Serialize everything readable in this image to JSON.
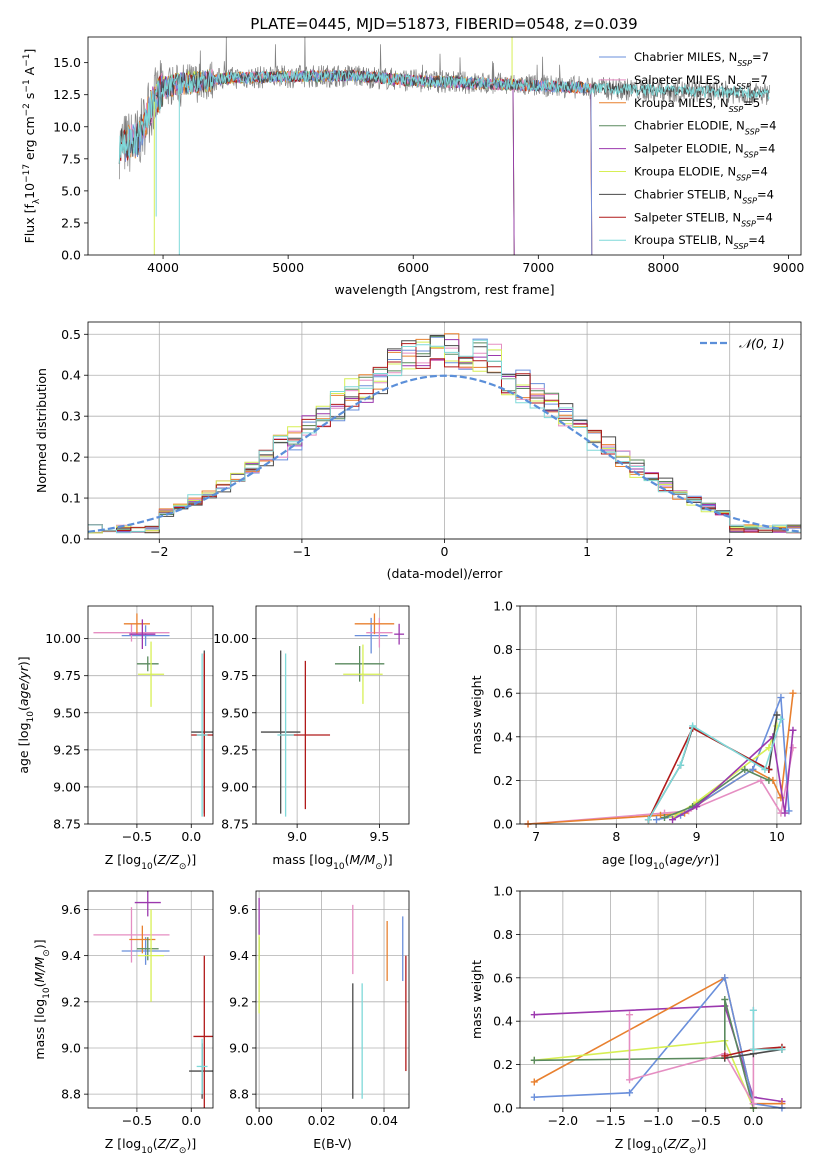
{
  "colors": {
    "Chabrier MILES": "#6a8fdb",
    "Salpeter MILES": "#e58ec2",
    "Kroupa MILES": "#e8802f",
    "Chabrier ELODIE": "#5a8a5e",
    "Salpeter ELODIE": "#9b38ae",
    "Kroupa ELODIE": "#d7ef55",
    "Chabrier STELIB": "#4a4a4a",
    "Salpeter STELIB": "#b01a1a",
    "Kroupa STELIB": "#7fd9d9",
    "gaussian": "#5b8fd9",
    "data_gray": "#808080"
  },
  "chart_data": [
    {
      "id": "spectrum",
      "type": "line",
      "title": "PLATE=0445, MJD=51873, FIBERID=0548, z=0.039",
      "xlabel": "wavelength [Angstrom, rest frame]",
      "ylabel": "Flux [f_λ 10^-17 erg cm^-2 s^-1 A^-1]",
      "xlim": [
        3400,
        9100
      ],
      "ylim": [
        0,
        17
      ],
      "xticks": [
        4000,
        5000,
        6000,
        7000,
        8000,
        9000
      ],
      "yticks": [
        0.0,
        2.5,
        5.0,
        7.5,
        10.0,
        12.5,
        15.0
      ],
      "grid": false,
      "legend_position": "upper right",
      "legend": [
        {
          "name": "Chabrier MILES",
          "n": "7"
        },
        {
          "name": "Salpeter MILES",
          "n": "7"
        },
        {
          "name": "Kroupa MILES",
          "n": "5"
        },
        {
          "name": "Chabrier ELODIE",
          "n": "4"
        },
        {
          "name": "Salpeter ELODIE",
          "n": "4"
        },
        {
          "name": "Kroupa ELODIE",
          "n": "4"
        },
        {
          "name": "Chabrier STELIB",
          "n": "4"
        },
        {
          "name": "Salpeter STELIB",
          "n": "4"
        },
        {
          "name": "Kroupa STELIB",
          "n": "4"
        }
      ],
      "continuum": [
        [
          3650,
          8.5
        ],
        [
          3800,
          9.0
        ],
        [
          3900,
          11.5
        ],
        [
          4000,
          13.0
        ],
        [
          4100,
          13.3
        ],
        [
          4300,
          13.5
        ],
        [
          4500,
          13.8
        ],
        [
          5000,
          13.9
        ],
        [
          5500,
          14.0
        ],
        [
          6000,
          13.6
        ],
        [
          6500,
          13.4
        ],
        [
          7000,
          13.2
        ],
        [
          7500,
          13.0
        ],
        [
          8000,
          12.8
        ],
        [
          8500,
          12.7
        ],
        [
          8800,
          12.6
        ]
      ],
      "model_ends": {
        "Kroupa ELODIE": [
          3900,
          6800
        ],
        "Chabrier ELODIE": [
          3900,
          6800
        ],
        "Salpeter ELODIE": [
          3900,
          6800
        ],
        "Kroupa MILES": [
          3700,
          7420
        ],
        "Salpeter MILES": [
          3700,
          7420
        ],
        "Chabrier MILES": [
          3700,
          7420
        ],
        "Salpeter STELIB": [
          3650,
          7420
        ],
        "Chabrier STELIB": [
          3650,
          8850
        ],
        "Kroupa STELIB": [
          3650,
          8850
        ]
      }
    },
    {
      "id": "residuals",
      "type": "area",
      "xlabel": "(data-model)/error",
      "ylabel": "Normed distribution",
      "xlim": [
        -2.5,
        2.5
      ],
      "ylim": [
        0,
        0.53
      ],
      "xticks": [
        -2,
        -1,
        0,
        1,
        2
      ],
      "yticks": [
        0.0,
        0.1,
        0.2,
        0.3,
        0.4,
        0.5
      ],
      "grid": true,
      "legend_position": "upper right",
      "legend": [
        {
          "name": "𝒩(0, 1)"
        }
      ],
      "bin_width": 0.1
    },
    {
      "id": "age_vs_Z",
      "type": "scatter",
      "xlabel": "Z [log10(Z/Z⊙)]",
      "ylabel": "age  [log10(age/yr)]",
      "xlim": [
        -0.95,
        0.2
      ],
      "ylim": [
        8.75,
        10.22
      ],
      "xticks": [
        -0.5,
        0.0
      ],
      "yticks": [
        8.75,
        9.0,
        9.25,
        9.5,
        9.75,
        10.0
      ],
      "grid": true,
      "points": [
        {
          "model": "Chabrier MILES",
          "x": -0.42,
          "xerr": 0.22,
          "y": 10.02,
          "yerr": 0.07
        },
        {
          "model": "Salpeter MILES",
          "x": -0.55,
          "xerr": 0.35,
          "y": 10.04,
          "yerr": 0.06
        },
        {
          "model": "Kroupa MILES",
          "x": -0.5,
          "xerr": 0.12,
          "y": 10.1,
          "yerr": 0.07
        },
        {
          "model": "Chabrier ELODIE",
          "x": -0.4,
          "xerr": 0.1,
          "y": 9.83,
          "yerr": 0.05
        },
        {
          "model": "Salpeter ELODIE",
          "x": -0.45,
          "xerr": 0.12,
          "y": 10.03,
          "yerr": 0.1
        },
        {
          "model": "Kroupa ELODIE",
          "x": -0.37,
          "xerr": 0.12,
          "y": 9.76,
          "yerr": 0.22
        },
        {
          "model": "Chabrier STELIB",
          "x": 0.12,
          "xerr": 0.12,
          "y": 9.37,
          "yerr": 0.55
        },
        {
          "model": "Salpeter STELIB",
          "x": 0.12,
          "xerr": 0.12,
          "y": 9.35,
          "yerr": 0.55
        },
        {
          "model": "Kroupa STELIB",
          "x": 0.1,
          "xerr": 0.05,
          "y": 9.35,
          "yerr": 0.55
        }
      ]
    },
    {
      "id": "age_vs_mass",
      "type": "scatter",
      "xlabel": "mass [log10(M/M⊙)]",
      "ylabel": "",
      "xlim": [
        8.75,
        9.68
      ],
      "ylim": [
        8.75,
        10.22
      ],
      "xticks": [
        9.0,
        9.5
      ],
      "yticks": [
        8.75,
        9.0,
        9.25,
        9.5,
        9.75,
        10.0
      ],
      "grid": true,
      "points": [
        {
          "model": "Chabrier MILES",
          "x": 9.45,
          "xerr": 0.1,
          "y": 10.02,
          "yerr": 0.12
        },
        {
          "model": "Salpeter MILES",
          "x": 9.5,
          "xerr": 0.08,
          "y": 10.04,
          "yerr": 0.1
        },
        {
          "model": "Kroupa MILES",
          "x": 9.47,
          "xerr": 0.12,
          "y": 10.1,
          "yerr": 0.07
        },
        {
          "model": "Chabrier ELODIE",
          "x": 9.38,
          "xerr": 0.15,
          "y": 9.83,
          "yerr": 0.12
        },
        {
          "model": "Salpeter ELODIE",
          "x": 9.62,
          "xerr": 0.03,
          "y": 10.03,
          "yerr": 0.07
        },
        {
          "model": "Kroupa ELODIE",
          "x": 9.4,
          "xerr": 0.12,
          "y": 9.76,
          "yerr": 0.2
        },
        {
          "model": "Chabrier STELIB",
          "x": 8.9,
          "xerr": 0.12,
          "y": 9.37,
          "yerr": 0.55
        },
        {
          "model": "Salpeter STELIB",
          "x": 9.05,
          "xerr": 0.15,
          "y": 9.35,
          "yerr": 0.5
        },
        {
          "model": "Kroupa STELIB",
          "x": 8.93,
          "xerr": 0.05,
          "y": 9.35,
          "yerr": 0.55
        }
      ]
    },
    {
      "id": "mass_weight_vs_age",
      "type": "line",
      "xlabel": "age  [log10(age/yr)]",
      "ylabel": "mass weight",
      "xlim": [
        6.8,
        10.3
      ],
      "ylim": [
        0,
        1
      ],
      "xticks": [
        7,
        8,
        9,
        10
      ],
      "yticks": [
        0.0,
        0.2,
        0.4,
        0.6,
        0.8,
        1.0
      ],
      "grid": true,
      "series": [
        {
          "model": "Salpeter MILES",
          "x": [
            6.9,
            8.6,
            8.9,
            9.8,
            10.05,
            10.2
          ],
          "y": [
            0.0,
            0.05,
            0.06,
            0.2,
            0.05,
            0.35
          ]
        },
        {
          "model": "Kroupa MILES",
          "x": [
            6.9,
            8.55,
            8.85,
            9.7,
            9.95,
            10.05,
            10.2
          ],
          "y": [
            0.0,
            0.04,
            0.05,
            0.25,
            0.2,
            0.12,
            0.6
          ]
        },
        {
          "model": "Chabrier MILES",
          "x": [
            8.5,
            8.8,
            9.7,
            10.05,
            10.15
          ],
          "y": [
            0.02,
            0.04,
            0.25,
            0.58,
            0.06
          ]
        },
        {
          "model": "Kroupa ELODIE",
          "x": [
            8.7,
            9.0,
            9.9,
            10.0
          ],
          "y": [
            0.03,
            0.1,
            0.35,
            0.45
          ]
        },
        {
          "model": "Chabrier ELODIE",
          "x": [
            8.6,
            8.95,
            9.6,
            9.9
          ],
          "y": [
            0.03,
            0.08,
            0.25,
            0.2
          ]
        },
        {
          "model": "Salpeter ELODIE",
          "x": [
            8.7,
            9.0,
            9.95,
            10.1,
            10.2
          ],
          "y": [
            0.02,
            0.08,
            0.4,
            0.05,
            0.43
          ]
        },
        {
          "model": "Chabrier STELIB",
          "x": [
            8.4,
            8.8,
            8.95,
            9.9,
            10.0
          ],
          "y": [
            0.02,
            0.27,
            0.44,
            0.25,
            0.5
          ]
        },
        {
          "model": "Salpeter STELIB",
          "x": [
            8.4,
            8.95,
            9.9
          ],
          "y": [
            0.02,
            0.44,
            0.25
          ]
        },
        {
          "model": "Kroupa STELIB",
          "x": [
            8.4,
            8.8,
            8.95,
            9.85,
            10.05
          ],
          "y": [
            0.02,
            0.27,
            0.45,
            0.25,
            0.48
          ]
        }
      ]
    },
    {
      "id": "mass_vs_Z",
      "type": "scatter",
      "xlabel": "Z [log10(Z/Z⊙)]",
      "ylabel": "mass [log10(M/M⊙)]",
      "xlim": [
        -0.95,
        0.2
      ],
      "ylim": [
        8.74,
        9.68
      ],
      "xticks": [
        -0.5,
        0.0
      ],
      "yticks": [
        8.8,
        9.0,
        9.2,
        9.4,
        9.6
      ],
      "grid": true,
      "points": [
        {
          "model": "Chabrier MILES",
          "x": -0.42,
          "xerr": 0.22,
          "y": 9.42,
          "yerr": 0.06
        },
        {
          "model": "Salpeter MILES",
          "x": -0.55,
          "xerr": 0.35,
          "y": 9.49,
          "yerr": 0.12
        },
        {
          "model": "Kroupa MILES",
          "x": -0.45,
          "xerr": 0.12,
          "y": 9.47,
          "yerr": 0.06
        },
        {
          "model": "Chabrier ELODIE",
          "x": -0.4,
          "xerr": 0.1,
          "y": 9.43,
          "yerr": 0.05
        },
        {
          "model": "Salpeter ELODIE",
          "x": -0.4,
          "xerr": 0.12,
          "y": 9.63,
          "yerr": 0.06
        },
        {
          "model": "Kroupa ELODIE",
          "x": -0.37,
          "xerr": 0.12,
          "y": 9.4,
          "yerr": 0.2
        },
        {
          "model": "Chabrier STELIB",
          "x": 0.1,
          "xerr": 0.12,
          "y": 8.9,
          "yerr": 0.12
        },
        {
          "model": "Salpeter STELIB",
          "x": 0.12,
          "xerr": 0.1,
          "y": 9.05,
          "yerr": 0.35
        },
        {
          "model": "Kroupa STELIB",
          "x": 0.1,
          "xerr": 0.05,
          "y": 8.92,
          "yerr": 0.12
        }
      ]
    },
    {
      "id": "mass_vs_ebv",
      "type": "scatter",
      "xlabel": "E(B-V)",
      "ylabel": "",
      "xlim": [
        -0.001,
        0.048
      ],
      "ylim": [
        8.74,
        9.68
      ],
      "xticks": [
        0.0,
        0.02,
        0.04
      ],
      "xticklabels": [
        "0.00",
        "0.02",
        "0.04"
      ],
      "yticks": [
        8.8,
        9.0,
        9.2,
        9.4,
        9.6
      ],
      "grid": true,
      "points": [
        {
          "model": "Chabrier MILES",
          "x": 0.046,
          "xerr": 0,
          "y": 9.43,
          "yerr": 0.14
        },
        {
          "model": "Salpeter MILES",
          "x": 0.03,
          "xerr": 0,
          "y": 9.47,
          "yerr": 0.15
        },
        {
          "model": "Kroupa MILES",
          "x": 0.041,
          "xerr": 0,
          "y": 9.42,
          "yerr": 0.13
        },
        {
          "model": "Chabrier ELODIE",
          "x": 0.0,
          "xerr": 0,
          "y": 9.43,
          "yerr": 0.05
        },
        {
          "model": "Salpeter ELODIE",
          "x": 0.0,
          "xerr": 0,
          "y": 9.57,
          "yerr": 0.08
        },
        {
          "model": "Kroupa ELODIE",
          "x": 0.0,
          "xerr": 0,
          "y": 9.32,
          "yerr": 0.17
        },
        {
          "model": "Chabrier STELIB",
          "x": 0.03,
          "xerr": 0,
          "y": 9.03,
          "yerr": 0.25
        },
        {
          "model": "Salpeter STELIB",
          "x": 0.047,
          "xerr": 0,
          "y": 9.15,
          "yerr": 0.25
        },
        {
          "model": "Kroupa STELIB",
          "x": 0.033,
          "xerr": 0,
          "y": 9.03,
          "yerr": 0.25
        }
      ]
    },
    {
      "id": "mass_weight_vs_Z",
      "type": "line",
      "xlabel": "Z [log10(Z/Z⊙)]",
      "ylabel": "mass weight",
      "xlim": [
        -2.45,
        0.5
      ],
      "ylim": [
        0,
        1
      ],
      "xticks": [
        -2.0,
        -1.5,
        -1.0,
        -0.5,
        0.0
      ],
      "yticks": [
        0.0,
        0.2,
        0.4,
        0.6,
        0.8,
        1.0
      ],
      "grid": true,
      "series": [
        {
          "model": "Salpeter ELODIE",
          "x": [
            -2.3,
            -0.3,
            0.0,
            0.3
          ],
          "y": [
            0.43,
            0.47,
            0.05,
            0.03
          ]
        },
        {
          "model": "Kroupa MILES",
          "x": [
            -2.3,
            -0.3,
            0.0,
            0.3
          ],
          "y": [
            0.12,
            0.6,
            0.02,
            0.02
          ]
        },
        {
          "model": "Chabrier MILES",
          "x": [
            -2.3,
            -1.3,
            -0.3,
            0.0,
            0.3
          ],
          "y": [
            0.05,
            0.07,
            0.6,
            0.02,
            0.0
          ]
        },
        {
          "model": "Kroupa ELODIE",
          "x": [
            -2.3,
            -0.3,
            0.0
          ],
          "y": [
            0.22,
            0.31,
            0.0
          ]
        },
        {
          "model": "Chabrier ELODIE",
          "x": [
            -2.3,
            -0.3,
            -0.3,
            0.0
          ],
          "y": [
            0.22,
            0.23,
            0.5,
            0.0
          ]
        },
        {
          "model": "Salpeter MILES",
          "x": [
            -1.3,
            -1.3,
            -0.3,
            0.0,
            0.0
          ],
          "y": [
            0.43,
            0.13,
            0.25,
            0.02,
            0.45
          ]
        },
        {
          "model": "Chabrier STELIB",
          "x": [
            -0.3,
            0.0,
            0.3
          ],
          "y": [
            0.23,
            0.25,
            0.27
          ]
        },
        {
          "model": "Salpeter STELIB",
          "x": [
            -0.3,
            0.0,
            0.3
          ],
          "y": [
            0.24,
            0.27,
            0.28
          ]
        },
        {
          "model": "Kroupa STELIB",
          "x": [
            0.0,
            0.0,
            0.3
          ],
          "y": [
            0.45,
            0.27,
            0.27
          ]
        }
      ]
    }
  ]
}
